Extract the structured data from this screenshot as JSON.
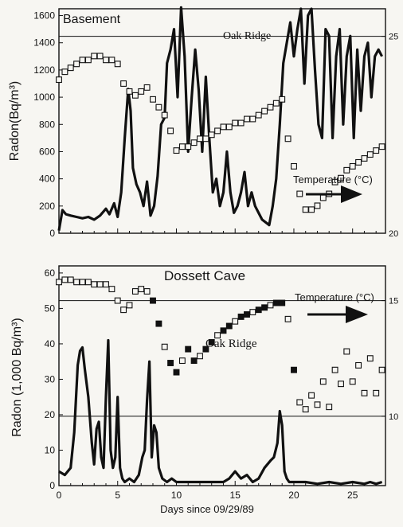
{
  "chart_data": [
    {
      "type": "line",
      "panel_title": "Basement",
      "annotations": [
        {
          "text": "Oak Ridge"
        },
        {
          "text": "Temperature (°C)",
          "arrow": "right"
        }
      ],
      "ylabel": "Radon(Bq/m³)",
      "ylim": [
        0,
        1650
      ],
      "yticks": [
        0,
        200,
        400,
        600,
        800,
        1000,
        1200,
        1400,
        1600
      ],
      "y2lim": [
        20,
        25.7
      ],
      "y2ticks": [
        20,
        25
      ],
      "y2_reference_line": 25,
      "xlim": [
        0,
        27.8
      ],
      "xticks": [
        0,
        5,
        10,
        15,
        20,
        25
      ],
      "grid": false,
      "series": [
        {
          "axis": "left",
          "style": "thick-line",
          "x": [
            0,
            0.3,
            0.6,
            1,
            1.5,
            2,
            2.5,
            3,
            3.5,
            4,
            4.3,
            4.7,
            5,
            5.3,
            5.6,
            5.9,
            6.1,
            6.3,
            6.6,
            6.9,
            7.2,
            7.5,
            7.8,
            8.1,
            8.4,
            8.7,
            9,
            9.2,
            9.5,
            9.8,
            10.1,
            10.4,
            10.7,
            11,
            11.3,
            11.6,
            11.9,
            12.2,
            12.5,
            12.8,
            13.1,
            13.4,
            13.7,
            14,
            14.3,
            14.6,
            14.9,
            15.2,
            15.5,
            15.8,
            16.1,
            16.4,
            16.7,
            17,
            17.3,
            17.6,
            17.9,
            18.2,
            18.5,
            18.8,
            19.1,
            19.4,
            19.7,
            20,
            20.3,
            20.6,
            20.9,
            21.2,
            21.5,
            21.8,
            22.1,
            22.4,
            22.7,
            23,
            23.3,
            23.6,
            23.9,
            24.2,
            24.5,
            24.8,
            25.1,
            25.4,
            25.7,
            26,
            26.3,
            26.6,
            26.9,
            27.2,
            27.5
          ],
          "values": [
            20,
            170,
            140,
            130,
            120,
            110,
            120,
            100,
            130,
            180,
            140,
            220,
            120,
            300,
            700,
            1060,
            900,
            480,
            360,
            300,
            200,
            380,
            130,
            200,
            420,
            800,
            850,
            1250,
            1350,
            1500,
            1000,
            1660,
            1300,
            600,
            1000,
            1350,
            1050,
            600,
            1150,
            700,
            300,
            400,
            200,
            300,
            600,
            300,
            150,
            200,
            300,
            450,
            200,
            300,
            200,
            150,
            100,
            80,
            60,
            200,
            400,
            800,
            1250,
            1400,
            1550,
            1300,
            1500,
            1650,
            1100,
            1600,
            1650,
            1200,
            800,
            700,
            1500,
            1450,
            700,
            1300,
            1500,
            800,
            1300,
            1450,
            700,
            1350,
            900,
            1300,
            1400,
            1000,
            1300,
            1350,
            1300
          ]
        },
        {
          "axis": "right",
          "label": "Temperature (°C)",
          "style": "open-squares",
          "x": [
            0,
            0.5,
            1,
            1.5,
            2,
            2.5,
            3,
            3.5,
            4,
            4.5,
            5,
            5.5,
            6,
            6.5,
            7,
            7.5,
            8,
            8.5,
            9,
            9.5,
            10,
            10.5,
            11,
            11.5,
            12,
            12.5,
            13,
            13.5,
            14,
            14.5,
            15,
            15.5,
            16,
            16.5,
            17,
            17.5,
            18,
            18.5,
            19,
            19.5,
            20,
            20.5,
            21,
            21.5,
            22,
            22.5,
            23,
            23.5,
            24,
            24.5,
            25,
            25.5,
            26,
            26.5,
            27,
            27.5
          ],
          "values": [
            23.9,
            24.1,
            24.2,
            24.3,
            24.4,
            24.4,
            24.5,
            24.5,
            24.4,
            24.4,
            24.3,
            23.8,
            23.6,
            23.5,
            23.6,
            23.7,
            23.4,
            23.2,
            23.0,
            22.6,
            22.1,
            22.2,
            22.2,
            22.3,
            22.4,
            22.4,
            22.5,
            22.6,
            22.7,
            22.7,
            22.8,
            22.8,
            22.9,
            22.9,
            23.0,
            23.1,
            23.2,
            23.3,
            23.4,
            22.4,
            21.7,
            21.0,
            20.6,
            20.6,
            20.7,
            20.9,
            21.0,
            21.3,
            21.4,
            21.6,
            21.7,
            21.8,
            21.9,
            22.0,
            22.1,
            22.2
          ]
        }
      ]
    },
    {
      "type": "line",
      "panel_title": "Dossett Cave",
      "annotations": [
        {
          "text": "Oak Ridge"
        },
        {
          "text": "Temperature (°C)",
          "arrow": "right"
        }
      ],
      "xlabel": "Days since 09/29/89",
      "ylabel": "Radon (1,000 Bq/m³)",
      "ylim": [
        0,
        62
      ],
      "yticks": [
        0,
        10,
        20,
        30,
        40,
        50,
        60
      ],
      "y2lim": [
        7,
        16.5
      ],
      "y2ticks": [
        10,
        15
      ],
      "y2_reference_lines": [
        10,
        15
      ],
      "xlim": [
        0,
        27.8
      ],
      "xticks": [
        0,
        5,
        10,
        15,
        20,
        25
      ],
      "grid": false,
      "series": [
        {
          "axis": "left",
          "style": "thick-line",
          "x": [
            0,
            0.5,
            1,
            1.3,
            1.6,
            1.8,
            2,
            2.2,
            2.5,
            2.8,
            3,
            3.2,
            3.4,
            3.6,
            3.8,
            4,
            4.2,
            4.4,
            4.6,
            4.8,
            5,
            5.2,
            5.4,
            5.6,
            6,
            6.4,
            6.8,
            7.1,
            7.3,
            7.5,
            7.7,
            7.9,
            8.1,
            8.3,
            8.5,
            8.8,
            9.2,
            9.6,
            10,
            11,
            12,
            13,
            14,
            14.5,
            15,
            15.5,
            16,
            16.5,
            17,
            17.5,
            18,
            18.3,
            18.6,
            18.8,
            19,
            19.2,
            19.4,
            19.6,
            20,
            21,
            22,
            23,
            24,
            25,
            26,
            26.5,
            27,
            27.5
          ],
          "values": [
            4,
            3,
            5,
            15,
            34,
            38,
            39,
            33,
            25,
            12,
            6,
            16,
            18,
            8,
            5,
            25,
            41,
            10,
            5,
            8,
            25,
            5,
            2,
            1,
            2,
            1,
            3,
            8,
            10,
            24,
            35,
            8,
            17,
            15,
            5,
            2,
            1,
            2,
            1,
            1,
            1,
            1,
            1,
            2,
            4,
            2,
            3,
            1,
            2,
            5,
            7,
            8,
            12,
            21,
            17,
            4,
            2,
            1,
            1,
            1,
            0.5,
            1,
            0.5,
            1,
            0.5,
            1,
            0.5,
            1
          ]
        },
        {
          "axis": "right",
          "label": "Temperature (°C)",
          "style": "squares-mixed",
          "x": [
            0,
            0.5,
            1,
            1.5,
            2,
            2.5,
            3,
            3.5,
            4,
            4.5,
            5,
            5.5,
            6,
            6.5,
            7,
            7.5,
            8,
            8.5,
            9,
            9.5,
            10,
            10.5,
            11,
            11.5,
            12,
            12.5,
            13,
            13.5,
            14,
            14.5,
            15,
            15.5,
            16,
            16.5,
            17,
            17.5,
            18,
            18.5,
            19,
            19.5,
            20,
            20.5,
            21,
            21.5,
            22,
            22.5,
            23,
            23.5,
            24,
            24.5,
            25,
            25.5,
            26,
            26.5,
            27,
            27.5
          ],
          "values": [
            15.8,
            15.9,
            15.9,
            15.8,
            15.8,
            15.8,
            15.7,
            15.7,
            15.7,
            15.5,
            15.0,
            14.6,
            14.8,
            15.4,
            15.5,
            15.4,
            15.0,
            14.0,
            13.0,
            12.3,
            11.9,
            12.4,
            12.9,
            12.4,
            12.6,
            12.9,
            13.2,
            13.5,
            13.7,
            13.9,
            14.1,
            14.3,
            14.4,
            14.5,
            14.6,
            14.7,
            14.8,
            14.9,
            14.9,
            14.2,
            12.0,
            10.6,
            10.3,
            10.9,
            10.5,
            11.5,
            10.4,
            12.0,
            11.4,
            12.8,
            11.5,
            12.2,
            11.0,
            12.5,
            11.0,
            12.0
          ]
        }
      ]
    }
  ]
}
